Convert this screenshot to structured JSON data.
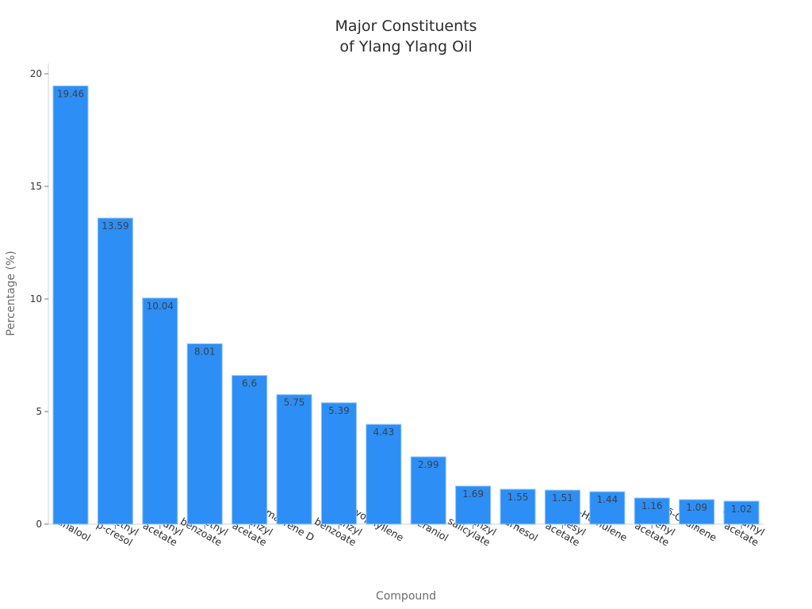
{
  "chart_data": {
    "type": "bar",
    "title": "Major Constituents of Ylang Ylang Oil",
    "title_lines": [
      "Major Constituents",
      "of Ylang Ylang Oil"
    ],
    "xlabel": "Compound",
    "ylabel": "Percentage (%)",
    "ylim": [
      0,
      20
    ],
    "yticks": [
      0,
      5,
      10,
      15,
      20
    ],
    "grid": false,
    "legend": null,
    "bar_color": "#2d8ff5",
    "bar_edge_color": "#8cc4fa",
    "categories": [
      "Linalool",
      "Methyl p-cresol",
      "Geranyl acetate",
      "Methyl benzoate",
      "Benzyl acetate",
      "Germacrene D",
      "Benzyl benzoate",
      "β-Caryophyllene",
      "Geraniol",
      "Benzyl salicylate",
      "Farnesol",
      "Farnesyl acetate",
      "α-Humulene",
      "Prenyl acetate",
      "δ-Cadinene",
      "Cinnamyl acetate"
    ],
    "category_label_lines": [
      [
        "Linalool"
      ],
      [
        "Methyl",
        "p-cresol"
      ],
      [
        "Geranyl",
        "acetate"
      ],
      [
        "Methyl",
        "benzoate"
      ],
      [
        "Benzyl",
        "acetate"
      ],
      [
        "Germacrene D"
      ],
      [
        "Benzyl",
        "benzoate"
      ],
      [
        "β-Caryophyllene"
      ],
      [
        "Geraniol"
      ],
      [
        "Benzyl",
        "salicylate"
      ],
      [
        "Farnesol"
      ],
      [
        "Farnesyl",
        "acetate"
      ],
      [
        "α-Humulene"
      ],
      [
        "Prenyl",
        "acetate"
      ],
      [
        "δ-Cadinene"
      ],
      [
        "Cinnamyl",
        "acetate"
      ]
    ],
    "values": [
      19.46,
      13.59,
      10.04,
      8.01,
      6.6,
      5.75,
      5.39,
      4.43,
      2.99,
      1.69,
      1.55,
      1.51,
      1.44,
      1.16,
      1.09,
      1.02
    ],
    "value_labels": [
      "19.46",
      "13.59",
      "10.04",
      "8.01",
      "6.6",
      "5.75",
      "5.39",
      "4.43",
      "2.99",
      "1.69",
      "1.55",
      "1.51",
      "1.44",
      "1.16",
      "1.09",
      "1.02"
    ]
  }
}
